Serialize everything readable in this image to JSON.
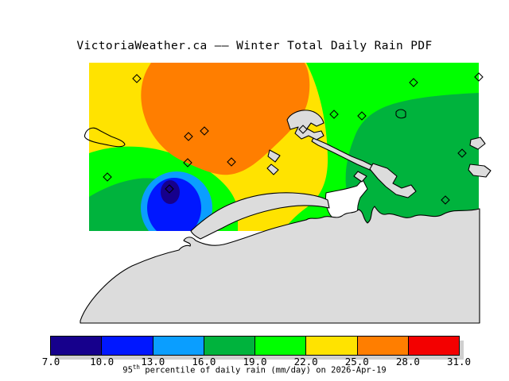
{
  "title": "VictoriaWeather.ca —— Winter Total Daily Rain PDF",
  "caption": {
    "base": "95",
    "sup": "th",
    "rest": " percentile of daily rain (mm/day) on 2026-Apr-19"
  },
  "colorbar": {
    "ticks": [
      "7.0",
      "10.0",
      "13.0",
      "16.0",
      "19.0",
      "22.0",
      "25.0",
      "28.0",
      "31.0"
    ],
    "colors": [
      "#16008c",
      "#0017ff",
      "#0a9eff",
      "#00b33d",
      "#00ff00",
      "#ffe300",
      "#ff7e00",
      "#f30000"
    ],
    "units": "mm/day"
  },
  "map": {
    "colors": {
      "band_7_10": "#16008c",
      "band_10_13": "#0017ff",
      "band_13_16": "#0a9eff",
      "band_16_19": "#00b33d",
      "band_19_22": "#00ff00",
      "band_22_25": "#ffe300",
      "band_25_28": "#ff7e00",
      "band_28_31": "#f30000",
      "land": "#dcdcdc",
      "coastline": "#000000"
    },
    "markers": [
      [
        172,
        99
      ],
      [
        237,
        172
      ],
      [
        257,
        165
      ],
      [
        236,
        205
      ],
      [
        291,
        204
      ],
      [
        135,
        223
      ],
      [
        213,
        238
      ],
      [
        381,
        163
      ],
      [
        420,
        144
      ],
      [
        455,
        146
      ],
      [
        520,
        104
      ],
      [
        602,
        97
      ],
      [
        581,
        193
      ],
      [
        560,
        252
      ]
    ]
  },
  "chart_data": {
    "type": "heatmap",
    "subtype": "filled_contour_map",
    "title": "VictoriaWeather.ca —— Winter Total Daily Rain PDF",
    "variable": "95th percentile of daily rain",
    "units": "mm/day",
    "date": "2026-Apr-19",
    "season": "Winter",
    "colorbar_ticks": [
      7.0,
      10.0,
      13.0,
      16.0,
      19.0,
      22.0,
      25.0,
      28.0,
      31.0
    ],
    "colorbar_range": [
      7.0,
      31.0
    ],
    "bands": [
      {
        "min": 7.0,
        "max": 10.0,
        "color": "#16008c"
      },
      {
        "min": 10.0,
        "max": 13.0,
        "color": "#0017ff"
      },
      {
        "min": 13.0,
        "max": 16.0,
        "color": "#0a9eff"
      },
      {
        "min": 16.0,
        "max": 19.0,
        "color": "#00b33d"
      },
      {
        "min": 19.0,
        "max": 22.0,
        "color": "#00ff00"
      },
      {
        "min": 22.0,
        "max": 25.0,
        "color": "#ffe300"
      },
      {
        "min": 25.0,
        "max": 28.0,
        "color": "#ff7e00"
      },
      {
        "min": 28.0,
        "max": 31.0,
        "color": "#f30000"
      }
    ],
    "features": [
      "orange maximum (25-28 mm/day) blob over upper-middle of domain",
      "rain-shadow minimum (7-10 mm/day) ringed bullseye near lower-left (Victoria)",
      "green (16-22 mm/day) region over eastern half",
      "grey land mask (Olympic Peninsula, islands) with black coastlines",
      "14 diamond station markers"
    ]
  }
}
